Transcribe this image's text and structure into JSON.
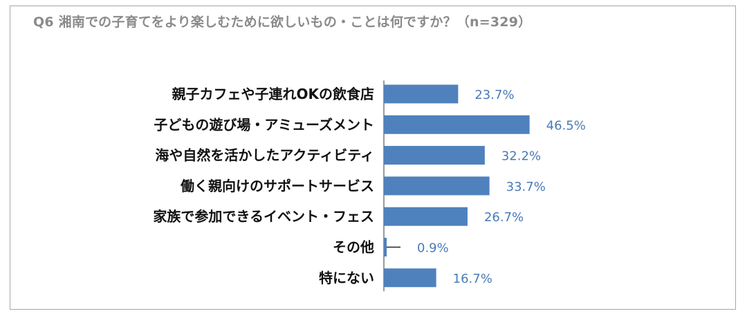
{
  "chart_data": {
    "type": "bar",
    "orientation": "horizontal",
    "title": "Q6 湘南での子育てをより楽しむために欲しいもの・ことは何ですか？（n=329）",
    "categories": [
      "親子カフェや子連れOKの飲食店",
      "子どもの遊び場・アミューズメント",
      "海や自然を活かしたアクティビティ",
      "働く親向けのサポートサービス",
      "家族で参加できるイベント・フェス",
      "その他",
      "特にない"
    ],
    "values": [
      23.7,
      46.5,
      32.2,
      33.7,
      26.7,
      0.9,
      16.7
    ],
    "value_labels": [
      "23.7%",
      "46.5%",
      "32.2%",
      "33.7%",
      "26.7%",
      "0.9%",
      "16.7%"
    ],
    "unit": "%",
    "xlim": [
      0,
      100
    ],
    "grid": false,
    "legend": "none",
    "bar_color": "#4f81bd",
    "label_color": "#4a7ab8"
  }
}
